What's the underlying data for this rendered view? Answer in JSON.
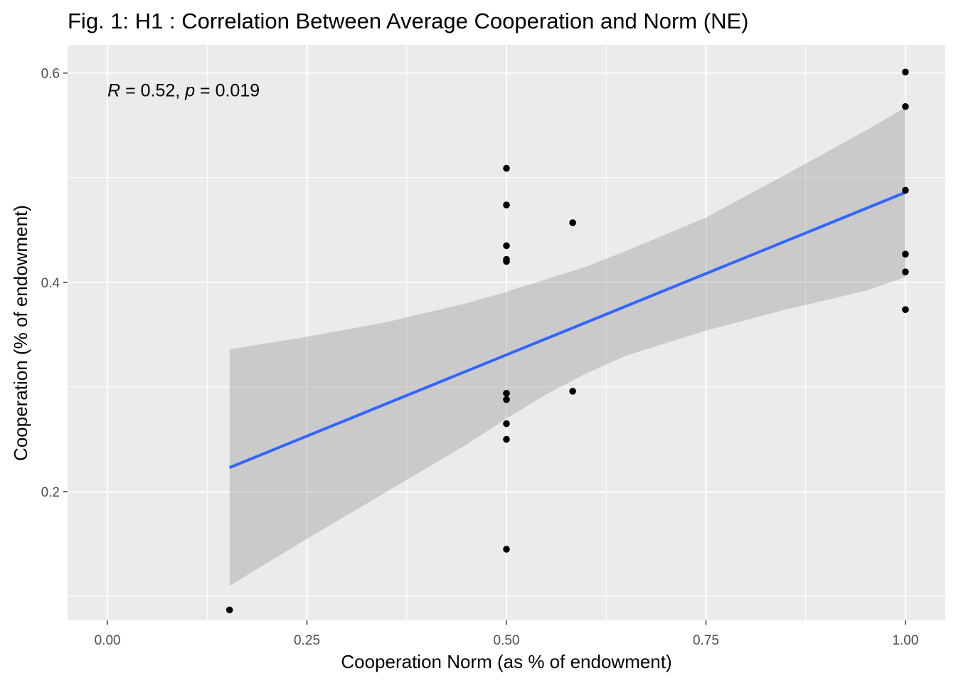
{
  "chart_data": {
    "type": "scatter",
    "title": "Fig. 1: H1 : Correlation Between Average Cooperation and Norm (NE)",
    "xlabel": "Cooperation Norm (as % of endowment)",
    "ylabel": "Cooperation (% of endowment)",
    "xlim": [
      -0.05,
      1.05
    ],
    "ylim": [
      0.077,
      0.627
    ],
    "x_ticks": [
      0.0,
      0.25,
      0.5,
      0.75,
      1.0
    ],
    "x_tick_labels": [
      "0.00",
      "0.25",
      "0.50",
      "0.75",
      "1.00"
    ],
    "y_ticks": [
      0.2,
      0.4,
      0.6
    ],
    "y_tick_labels": [
      "0.2",
      "0.4",
      "0.6"
    ],
    "grid": true,
    "annotation": {
      "r_symbol": "R",
      "r_text": " = 0.52, ",
      "p_symbol": "p",
      "p_text": " = 0.019"
    },
    "points": [
      {
        "x": 0.153,
        "y": 0.087
      },
      {
        "x": 0.5,
        "y": 0.509
      },
      {
        "x": 0.5,
        "y": 0.474
      },
      {
        "x": 0.5,
        "y": 0.435
      },
      {
        "x": 0.5,
        "y": 0.422
      },
      {
        "x": 0.5,
        "y": 0.42
      },
      {
        "x": 0.5,
        "y": 0.294
      },
      {
        "x": 0.5,
        "y": 0.288
      },
      {
        "x": 0.5,
        "y": 0.265
      },
      {
        "x": 0.5,
        "y": 0.25
      },
      {
        "x": 0.5,
        "y": 0.145
      },
      {
        "x": 0.583,
        "y": 0.457
      },
      {
        "x": 0.583,
        "y": 0.296
      },
      {
        "x": 1.0,
        "y": 0.601
      },
      {
        "x": 1.0,
        "y": 0.568
      },
      {
        "x": 1.0,
        "y": 0.488
      },
      {
        "x": 1.0,
        "y": 0.427
      },
      {
        "x": 1.0,
        "y": 0.41
      },
      {
        "x": 1.0,
        "y": 0.374
      }
    ],
    "fit_line": {
      "color": "#3366FF",
      "x": [
        0.153,
        1.0
      ],
      "y": [
        0.223,
        0.486
      ]
    },
    "confidence_band": {
      "color": "#999999",
      "x": [
        0.153,
        0.25,
        0.35,
        0.45,
        0.5,
        0.55,
        0.6,
        0.65,
        0.75,
        0.85,
        0.95,
        1.0
      ],
      "upper": [
        0.336,
        0.348,
        0.362,
        0.38,
        0.391,
        0.403,
        0.415,
        0.43,
        0.462,
        0.503,
        0.545,
        0.567
      ],
      "lower": [
        0.11,
        0.155,
        0.2,
        0.245,
        0.27,
        0.293,
        0.313,
        0.33,
        0.354,
        0.374,
        0.392,
        0.405
      ]
    },
    "colors": {
      "panel": "#EBEBEB",
      "grid": "#FFFFFF",
      "points": "#000000"
    }
  }
}
